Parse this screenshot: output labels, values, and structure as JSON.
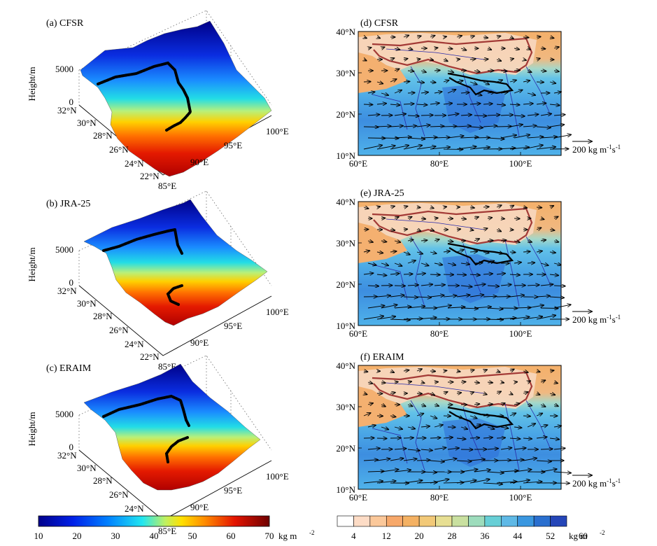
{
  "figure": {
    "colors": {
      "sfc_cmap": [
        "#00008c",
        "#0018d8",
        "#0064ff",
        "#00b4ff",
        "#22e6e6",
        "#a0f0b0",
        "#f0f000",
        "#ffb400",
        "#ff6400",
        "#e61400",
        "#a00000",
        "#5c0000"
      ],
      "pw_levels": [
        "#ffffff",
        "#fddcc6",
        "#fbc89a",
        "#f7a86a",
        "#f4b163",
        "#f2c978",
        "#e7df93",
        "#c9e0a0",
        "#9ddcbc",
        "#67cfd6",
        "#5fb9e6",
        "#3a97e0",
        "#2a6fcf",
        "#2546b8"
      ],
      "tp_boundary": "#a33a36",
      "rivers": "#2a2aaa",
      "route": "#000000",
      "vectors": "#000000"
    },
    "left_colorbar": {
      "ticks": [
        "10",
        "20",
        "30",
        "40",
        "50",
        "60",
        "70"
      ],
      "unit": "kg m",
      "unit_sup": "-2"
    },
    "right_colorbar": {
      "ticks": [
        "4",
        "12",
        "20",
        "28",
        "36",
        "44",
        "52",
        "60"
      ],
      "unit": "kg m",
      "unit_sup": "-2"
    },
    "surface_panels": [
      {
        "label": "(a)  CFSR",
        "zlabel": "Height/m",
        "zticks": [
          "5000",
          "0"
        ],
        "lat_ticks": [
          "32°N",
          "30°N",
          "28°N",
          "26°N",
          "24°N",
          "22°N"
        ],
        "lon_ticks": [
          "85°E",
          "90°E",
          "95°E",
          "100°E"
        ]
      },
      {
        "label": "(b)  JRA-25",
        "zlabel": "Height/m",
        "zticks": [
          "5000",
          "0"
        ],
        "lat_ticks": [
          "32°N",
          "30°N",
          "28°N",
          "26°N",
          "24°N",
          "22°N"
        ],
        "lon_ticks": [
          "85°E",
          "90°E",
          "95°E",
          "100°E"
        ]
      },
      {
        "label": "(c)  ERAIM",
        "zlabel": "Height/m",
        "zticks": [
          "5000",
          "0"
        ],
        "lat_ticks": [
          "32°N",
          "30°N",
          "28°N",
          "26°N",
          "24°N",
          "22°N"
        ],
        "lon_ticks": [
          "85°E",
          "90°E",
          "95°E",
          "100°E"
        ]
      }
    ],
    "map_panels": [
      {
        "label": "(d)  CFSR",
        "lat_ticks": [
          "40°N",
          "30°N",
          "20°N",
          "10°N"
        ],
        "lon_ticks": [
          "60°E",
          "80°E",
          "100°E"
        ],
        "ref_vector": "200 kg m",
        "ref_sup1": "-1",
        "ref_s": "s",
        "ref_sup2": "-1"
      },
      {
        "label": "(e)  JRA-25",
        "lat_ticks": [
          "40°N",
          "30°N",
          "20°N",
          "10°N"
        ],
        "lon_ticks": [
          "60°E",
          "80°E",
          "100°E"
        ],
        "ref_vector": "200 kg m",
        "ref_sup1": "-1",
        "ref_s": "s",
        "ref_sup2": "-1"
      },
      {
        "label": "(f)  ERAIM",
        "lat_ticks": [
          "40°N",
          "30°N",
          "20°N",
          "10°N"
        ],
        "lon_ticks": [
          "60°E",
          "80°E",
          "100°E"
        ],
        "ref_vector": "200 kg m",
        "ref_sup1": "-1",
        "ref_s": "s",
        "ref_sup2": "-1"
      }
    ]
  },
  "chart_data": [
    {
      "type": "heatmap",
      "subtype": "3d-surface",
      "panels": [
        "(a)  CFSR",
        "(b)  JRA-25",
        "(c)  ERAIM"
      ],
      "x_range": [
        85,
        100
      ],
      "y_range": [
        22,
        32
      ],
      "z_range": [
        0,
        5000
      ],
      "color_range": [
        10,
        70
      ],
      "unit": "kg m-2"
    },
    {
      "type": "heatmap",
      "subtype": "filled-contour-map-with-vectors",
      "panels": [
        "(d)  CFSR",
        "(e)  JRA-25",
        "(f)  ERAIM"
      ],
      "x_range": [
        60,
        110
      ],
      "y_range": [
        10,
        40
      ],
      "levels": [
        4,
        8,
        12,
        16,
        20,
        24,
        28,
        32,
        36,
        40,
        44,
        48,
        52,
        56,
        60
      ],
      "unit": "kg m-2",
      "reference_vector": "200 kg m-1 s-1"
    }
  ]
}
